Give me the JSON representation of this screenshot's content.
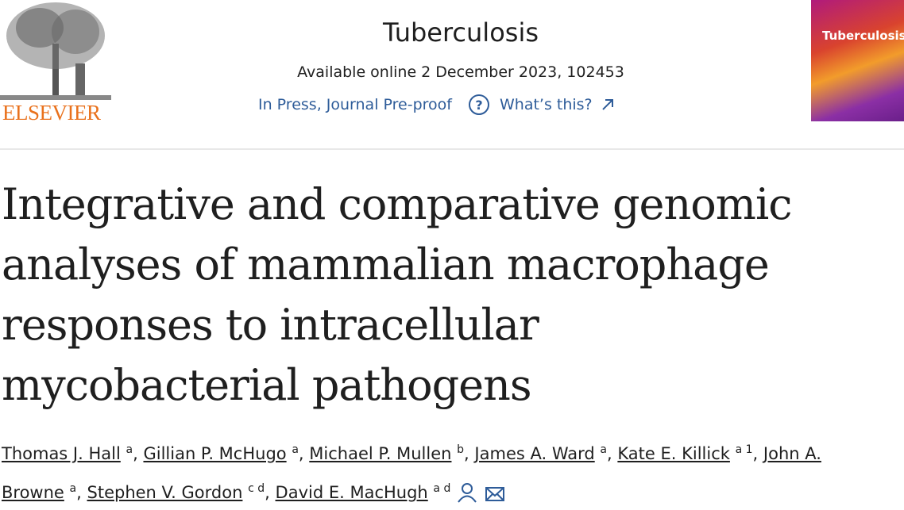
{
  "header": {
    "publisher": "ELSEVIER",
    "journal": "Tuberculosis",
    "availability": "Available online 2 December 2023, 102453",
    "status": "In Press, Journal Pre-proof",
    "help": "What’s this?",
    "cover_title": "Tuberculosis"
  },
  "article": {
    "title": "Integrative and comparative genomic analyses of mammalian macrophage responses to intracellular mycobacterial pathogens",
    "authors": [
      {
        "name": "Thomas J. Hall",
        "affiliations": "a",
        "separator": ","
      },
      {
        "name": "Gillian P. McHugo",
        "affiliations": "a",
        "separator": ","
      },
      {
        "name": "Michael P. Mullen",
        "affiliations": "b",
        "separator": ","
      },
      {
        "name": "James A. Ward",
        "affiliations": "a",
        "separator": ","
      },
      {
        "name": "Kate E. Killick",
        "affiliations": "a 1",
        "separator": ","
      },
      {
        "name": "John A. Browne",
        "affiliations": "a",
        "separator": ","
      },
      {
        "name": "Stephen V. Gordon",
        "affiliations": "c d",
        "separator": ","
      },
      {
        "name": "David E. MacHugh",
        "affiliations": "a d"
      }
    ]
  }
}
